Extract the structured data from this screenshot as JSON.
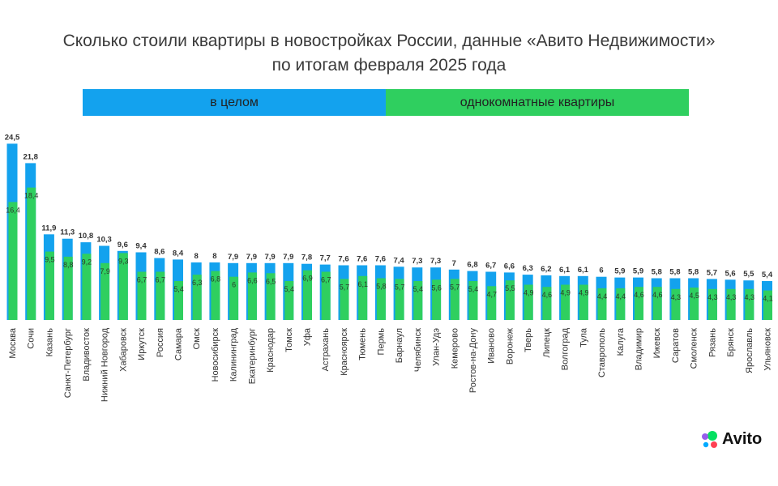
{
  "title_line1": "Сколько стоили квартиры в новостройках России, данные «Авито Недвижимости»",
  "title_line2": "по итогам февраля 2025 года",
  "legend": {
    "all": "в целом",
    "one_room": "однокомнатные квартиры"
  },
  "colors": {
    "all": "#13a2ee",
    "one_room": "#2fcf5f"
  },
  "brand": {
    "name": "Avito",
    "logo": "avito-logo-dots"
  },
  "chart_data": {
    "type": "bar",
    "title": "Сколько стоили квартиры в новостройках России, данные «Авито Недвижимости» по итогам февраля 2025 года",
    "xlabel": "",
    "ylabel": "",
    "ylim": [
      0,
      25
    ],
    "grid": false,
    "legend_position": "top",
    "categories": [
      "Москва",
      "Сочи",
      "Казань",
      "Санкт-Петербург",
      "Владивосток",
      "Нижний Новгород",
      "Хабаровск",
      "Иркутск",
      "Россия",
      "Самара",
      "Омск",
      "Новосибирск",
      "Калининград",
      "Екатеринбург",
      "Краснодар",
      "Томск",
      "Уфа",
      "Астрахань",
      "Красноярск",
      "Тюмень",
      "Пермь",
      "Барнаул",
      "Челябинск",
      "Улан-Удэ",
      "Кемерово",
      "Ростов-на-Дону",
      "Иваново",
      "Воронеж",
      "Тверь",
      "Липецк",
      "Волгоград",
      "Тула",
      "Ставрополь",
      "Калуга",
      "Владимир",
      "Ижевск",
      "Саратов",
      "Смоленск",
      "Рязань",
      "Брянск",
      "Ярославль",
      "Ульяновск"
    ],
    "series": [
      {
        "name": "в целом",
        "values": [
          "24,5",
          "21,8",
          "11,9",
          "11,3",
          "10,8",
          "10,3",
          "9,6",
          "9,4",
          "8,6",
          "8,4",
          "8",
          "8",
          "7,9",
          "7,9",
          "7,9",
          "7,9",
          "7,8",
          "7,7",
          "7,6",
          "7,6",
          "7,6",
          "7,4",
          "7,3",
          "7,3",
          "7",
          "6,8",
          "6,7",
          "6,6",
          "6,3",
          "6,2",
          "6,1",
          "6,1",
          "6",
          "5,9",
          "5,9",
          "5,8",
          "5,8",
          "5,8",
          "5,7",
          "5,6",
          "5,5",
          "5,4"
        ]
      },
      {
        "name": "однокомнатные квартиры",
        "values": [
          "16,4",
          "18,4",
          "9,5",
          "8,8",
          "9,2",
          "7,9",
          "9,3",
          "6,7",
          "6,7",
          "5,4",
          "6,3",
          "6,8",
          "6",
          "6,6",
          "6,5",
          "5,4",
          "6,9",
          "6,7",
          "5,7",
          "6,1",
          "5,8",
          "5,7",
          "5,4",
          "5,6",
          "5,7",
          "5,4",
          "4,7",
          "5,5",
          "4,9",
          "4,6",
          "4,9",
          "4,9",
          "4,4",
          "4,4",
          "4,6",
          "4,6",
          "4,3",
          "4,5",
          "4,3",
          "4,3",
          "4,3",
          "4,1"
        ]
      }
    ]
  }
}
